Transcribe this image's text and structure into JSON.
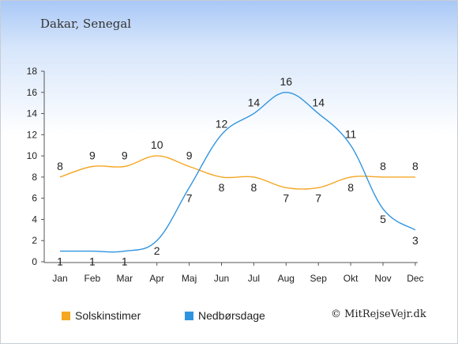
{
  "header": {
    "location": "Dakar, Senegal"
  },
  "footer": {
    "copyright": "© MitRejseVejr.dk"
  },
  "chart_data": {
    "type": "line",
    "categories": [
      "Jan",
      "Feb",
      "Mar",
      "Apr",
      "Maj",
      "Jun",
      "Jul",
      "Aug",
      "Sep",
      "Okt",
      "Nov",
      "Dec"
    ],
    "ylim": [
      0,
      18
    ],
    "yticks": [
      0,
      2,
      4,
      6,
      8,
      10,
      12,
      14,
      16,
      18
    ],
    "grid": false,
    "legend": "bottom-left",
    "series": [
      {
        "name": "Solskinstimer",
        "color": "#f5a623",
        "values": [
          8,
          9,
          9,
          10,
          9,
          8,
          8,
          7,
          7,
          8,
          8,
          8
        ]
      },
      {
        "name": "Nedbørsdage",
        "color": "#2f94e0",
        "values": [
          1,
          1,
          1,
          2,
          7,
          12,
          14,
          16,
          14,
          11,
          5,
          3
        ]
      }
    ]
  }
}
